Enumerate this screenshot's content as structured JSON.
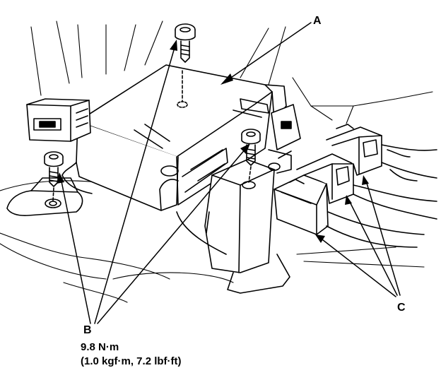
{
  "labels": {
    "a": "A",
    "b": "B",
    "c": "C"
  },
  "torque": {
    "line1": "9.8 N·m",
    "line2": "(1.0 kgf·m, 7.2 lbf·ft)"
  },
  "colors": {
    "ink": "#000000",
    "paper": "#ffffff"
  }
}
